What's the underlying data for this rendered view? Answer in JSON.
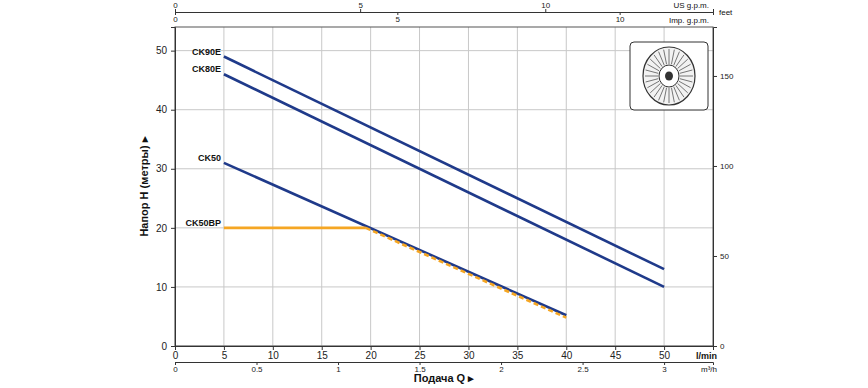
{
  "chart_data": {
    "type": "line",
    "xlabel": "Подача Q ▸",
    "ylabel": "Напор H (метры) ▸",
    "xunit": "l/min",
    "xlim": [
      0,
      55
    ],
    "xticks": [
      0,
      5,
      10,
      15,
      20,
      25,
      30,
      35,
      40,
      45,
      50
    ],
    "ylim": [
      0,
      54
    ],
    "yticks": [
      0,
      10,
      20,
      30,
      40,
      50
    ],
    "grid": true,
    "x2label": "m³/h",
    "x2lim": [
      0,
      3.3
    ],
    "x2ticks": [
      0,
      0.5,
      1,
      1.5,
      2,
      2.5,
      3
    ],
    "x3label": "US g.p.m.",
    "x3lim": [
      0,
      14.53
    ],
    "x3ticks": [
      0,
      5,
      10
    ],
    "x4label": "Imp. g.p.m.",
    "x4lim": [
      0,
      12.1
    ],
    "x4ticks": [
      0,
      5,
      10
    ],
    "y2label": "feet",
    "y2lim": [
      0,
      177.2
    ],
    "y2ticks": [
      0,
      50,
      100,
      150
    ],
    "series": [
      {
        "name": "CK90E",
        "color": "#1f3a8a",
        "line_style": "solid",
        "x": [
          5,
          50
        ],
        "values": [
          49,
          13
        ]
      },
      {
        "name": "CK80E",
        "color": "#1f3a8a",
        "line_style": "solid",
        "x": [
          5,
          50
        ],
        "values": [
          46,
          10
        ]
      },
      {
        "name": "CK50",
        "color": "#1f3a8a",
        "line_style": "solid",
        "x": [
          5,
          40
        ],
        "values": [
          31,
          5.2
        ]
      },
      {
        "name": "CK50BP",
        "color": "#f5a623",
        "line_style": [
          "solid",
          "dashed"
        ],
        "x": [
          5,
          19.5,
          40
        ],
        "values": [
          20,
          20,
          4.8
        ]
      }
    ]
  }
}
